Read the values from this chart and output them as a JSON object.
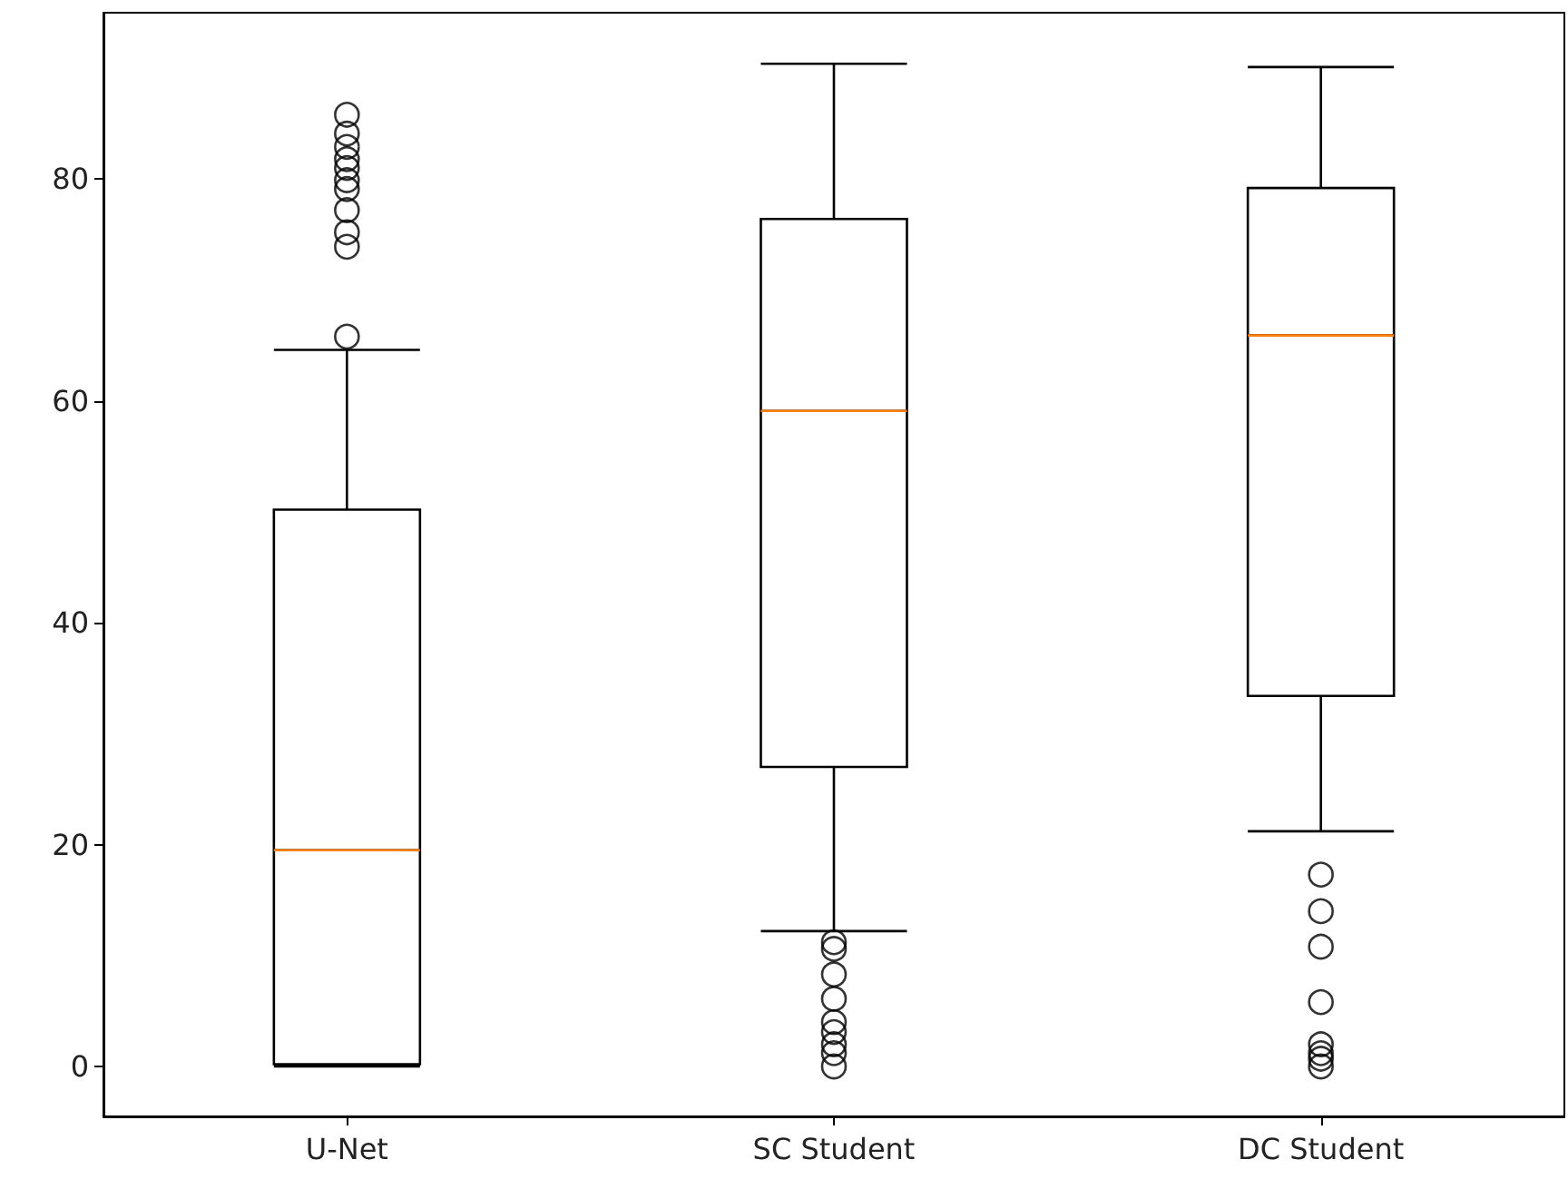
{
  "chart_data": {
    "type": "box",
    "categories": [
      "U-Net",
      "SC Student",
      "DC Student"
    ],
    "boxes": [
      {
        "low": 0,
        "q1": 0.2,
        "median": 19.5,
        "q3": 50.2,
        "high": 64.6,
        "outliers": [
          65.8,
          73.9,
          75.2,
          77.2,
          79.1,
          79.9,
          81.0,
          81.8,
          82.9,
          84.1,
          85.8
        ]
      },
      {
        "low": 12.2,
        "q1": 27.0,
        "median": 59.1,
        "q3": 76.4,
        "high": 90.4,
        "outliers": [
          0,
          1.2,
          2.0,
          3.1,
          4.0,
          6.1,
          8.3,
          10.6,
          11.2
        ]
      },
      {
        "low": 21.2,
        "q1": 33.4,
        "median": 65.9,
        "q3": 79.2,
        "high": 90.1,
        "outliers": [
          0,
          0.7,
          1.2,
          2.0,
          5.8,
          10.8,
          14.0,
          17.3
        ]
      }
    ],
    "color": "#000000",
    "ylim": [
      -4.5,
      95
    ],
    "yticks": [
      0,
      20,
      40,
      60,
      80
    ],
    "grid": false,
    "marker": "circle"
  }
}
